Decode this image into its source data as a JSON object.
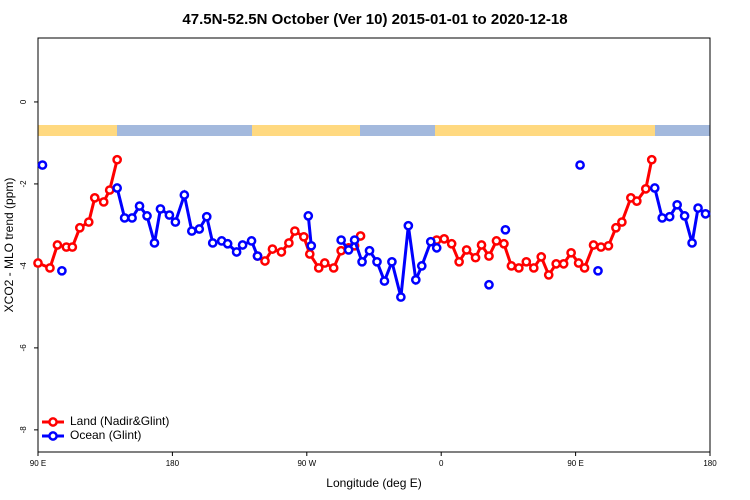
{
  "chart_data": {
    "type": "line",
    "title": "47.5N-52.5N October (Ver 10)   2015-01-01 to 2020-12-18",
    "xlabel": "Longitude (deg E)",
    "ylabel": "XCO2 - MLO trend (ppm)",
    "xlim": [
      90,
      540
    ],
    "ylim": [
      -8.54,
      1.56
    ],
    "xticks": [
      {
        "value": 90,
        "label": "90 E"
      },
      180,
      {
        "value": 270,
        "label": "90 W"
      },
      {
        "value": 360,
        "label": "0"
      },
      {
        "value": 450,
        "label": "90 E"
      },
      {
        "value": 540,
        "label": "180"
      }
    ],
    "yticks": [
      0,
      -2,
      -4,
      -6,
      -8
    ],
    "legend": "bottom-left",
    "series": [
      {
        "name": "Land (Nadir&Glint)",
        "color": "#ff0000",
        "x": [
          90,
          98,
          103,
          109,
          113,
          118,
          124,
          128,
          134,
          138,
          143,
          null,
          237,
          242,
          247,
          253,
          258,
          262,
          268,
          272,
          278,
          282,
          288,
          293,
          298,
          302,
          306,
          null,
          357,
          362,
          367,
          372,
          377,
          383,
          387,
          392,
          397,
          402,
          407,
          412,
          417,
          422,
          427,
          432,
          437,
          442,
          447,
          452,
          456,
          462,
          467,
          472,
          477,
          481,
          487,
          491,
          497,
          501
        ],
        "values": [
          -3.93,
          -4.05,
          -3.49,
          -3.54,
          -3.54,
          -3.07,
          -2.93,
          -2.34,
          -2.44,
          -2.15,
          -1.41,
          null,
          -3.76,
          -3.88,
          -3.59,
          -3.66,
          -3.44,
          -3.15,
          -3.29,
          -3.71,
          -4.05,
          -3.93,
          -4.05,
          -3.63,
          -3.56,
          -3.51,
          -3.27,
          null,
          -3.37,
          -3.34,
          -3.46,
          -3.9,
          -3.61,
          -3.8,
          -3.49,
          -3.76,
          -3.39,
          -3.46,
          -4.0,
          -4.05,
          -3.9,
          -4.05,
          -3.78,
          -4.22,
          -3.95,
          -3.95,
          -3.68,
          -3.93,
          -4.05,
          -3.49,
          -3.54,
          -3.51,
          -3.07,
          -2.93,
          -2.34,
          -2.42,
          -2.12,
          -1.41
        ]
      },
      {
        "name": "Ocean (Glint)",
        "color": "#0000ff",
        "x": [
          93,
          null,
          106,
          null,
          143,
          148,
          153,
          158,
          163,
          168,
          172,
          178,
          182,
          188,
          193,
          198,
          203,
          207,
          213,
          217,
          223,
          227,
          233,
          237,
          null,
          271,
          273,
          null,
          293,
          298,
          302,
          307,
          312,
          317,
          322,
          327,
          333,
          338,
          343,
          347,
          353,
          357,
          null,
          392,
          null,
          403,
          null,
          453,
          null,
          465,
          null,
          503,
          508,
          513,
          518,
          523,
          528,
          532,
          537
        ],
        "values": [
          -1.54,
          null,
          -4.12,
          null,
          -2.1,
          -2.83,
          -2.83,
          -2.54,
          -2.78,
          -3.44,
          -2.61,
          -2.76,
          -2.93,
          -2.27,
          -3.15,
          -3.1,
          -2.8,
          -3.44,
          -3.39,
          -3.46,
          -3.66,
          -3.49,
          -3.39,
          -3.76,
          null,
          -2.78,
          -3.51,
          null,
          -3.37,
          -3.61,
          -3.37,
          -3.9,
          -3.63,
          -3.9,
          -4.37,
          -3.9,
          -4.76,
          -3.02,
          -4.34,
          -4.0,
          -3.41,
          -3.56,
          null,
          -4.46,
          null,
          -3.12,
          null,
          -1.54,
          null,
          -4.12,
          null,
          -2.1,
          -2.83,
          -2.8,
          -2.51,
          -2.78,
          -3.44,
          -2.59,
          -2.73
        ]
      }
    ]
  }
}
